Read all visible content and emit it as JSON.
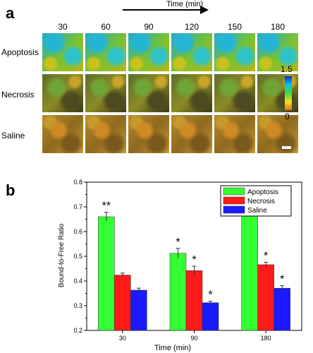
{
  "panel_a": {
    "label": "a",
    "time_title": "Time (min)",
    "timepoints": [
      "30",
      "60",
      "90",
      "120",
      "150",
      "180"
    ],
    "rows": [
      "Apoptosis",
      "Necrosis",
      "Saline"
    ],
    "colorbar": {
      "max_label": "1.5",
      "min_label": "0",
      "colors": [
        "#0a2bd2",
        "#00c8e6",
        "#45d64a",
        "#f2e11c",
        "#e1711f"
      ]
    }
  },
  "panel_b": {
    "label": "b"
  },
  "chart_data": {
    "type": "bar",
    "categories": [
      "30",
      "90",
      "180"
    ],
    "series": [
      {
        "name": "Apoptosis",
        "color": "#33ff33",
        "values": [
          0.66,
          0.512,
          0.714
        ],
        "errors": [
          0.018,
          0.02,
          0.018
        ],
        "sig": [
          "**",
          "*",
          "**"
        ]
      },
      {
        "name": "Necrosis",
        "color": "#ff1a1a",
        "values": [
          0.424,
          0.442,
          0.466
        ],
        "errors": [
          0.008,
          0.018,
          0.01
        ],
        "sig": [
          "",
          "*",
          "*"
        ]
      },
      {
        "name": "Saline",
        "color": "#1a1aff",
        "values": [
          0.363,
          0.312,
          0.371
        ],
        "errors": [
          0.008,
          0.006,
          0.01
        ],
        "sig": [
          "",
          "*",
          "*"
        ]
      }
    ],
    "xlabel": "Time (min)",
    "ylabel": "Bound-to-Free Ratio",
    "ylim": [
      0.2,
      0.8
    ],
    "yticks": [
      "0.2",
      "0.3",
      "0.4",
      "0.5",
      "0.6",
      "0.7",
      "0.8"
    ],
    "legend_position": "top-right"
  }
}
